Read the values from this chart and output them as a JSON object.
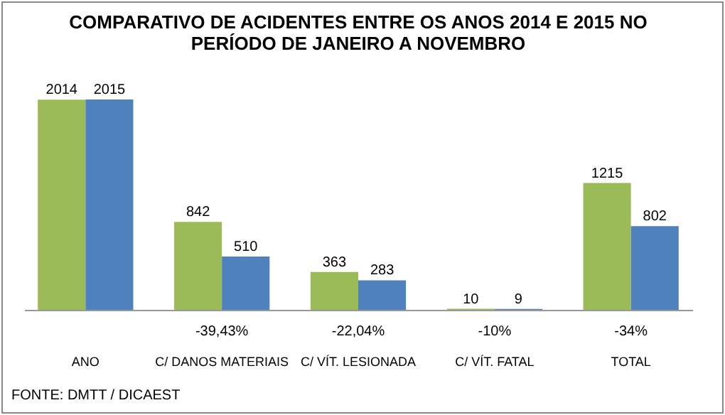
{
  "chart_data": {
    "type": "bar",
    "title": "COMPARATIVO  DE ACIDENTES ENTRE OS ANOS 2014 E 2015 NO PERÍODO DE JANEIRO A NOVEMBRO",
    "categories": [
      "ANO",
      "C/ DANOS MATERIAIS",
      "C/ VÍT. LESIONADA",
      "C/ VÍT. FATAL",
      "TOTAL"
    ],
    "series": [
      {
        "color": "#9bbb59",
        "values": [
          2014,
          842,
          363,
          10,
          1215
        ]
      },
      {
        "color": "#4f81bd",
        "values": [
          2015,
          510,
          283,
          9,
          802
        ]
      }
    ],
    "data_labels": true,
    "grid": false,
    "legend": false,
    "annotations": [
      "-39,43%",
      "-22,04%",
      "-10%",
      "-34%",
      "FONTE: DMTT / DICAEST"
    ]
  }
}
